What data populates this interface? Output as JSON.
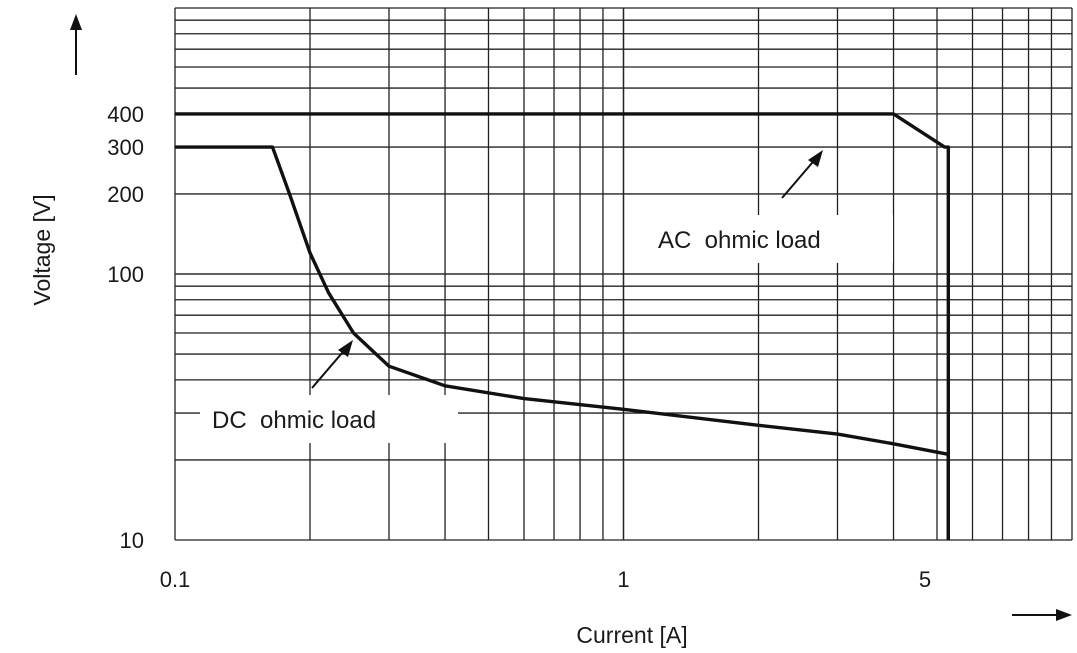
{
  "chart_data": {
    "type": "line",
    "title": "",
    "xlabel": "Current [A]",
    "ylabel": "Voltage [V]",
    "xscale": "log",
    "yscale": "log",
    "xlim": [
      0.1,
      10
    ],
    "ylim": [
      10,
      1000
    ],
    "grid": true,
    "x_ticks": [
      {
        "value": 0.1,
        "label": "0.1"
      },
      {
        "value": 1,
        "label": "1"
      },
      {
        "value": 5,
        "label": "5"
      }
    ],
    "y_ticks": [
      {
        "value": 10,
        "label": "10"
      },
      {
        "value": 100,
        "label": "100"
      },
      {
        "value": 200,
        "label": "200"
      },
      {
        "value": 300,
        "label": "300"
      },
      {
        "value": 400,
        "label": "400"
      }
    ],
    "series": [
      {
        "name": "AC ohmic load",
        "x": [
          0.1,
          4.0,
          5.2,
          5.3,
          5.3
        ],
        "y": [
          400,
          400,
          300,
          300,
          10
        ]
      },
      {
        "name": "DC ohmic load",
        "x": [
          0.1,
          0.165,
          0.18,
          0.2,
          0.22,
          0.25,
          0.3,
          0.4,
          0.6,
          1.0,
          2.0,
          3.0,
          4.0,
          5.3,
          5.3
        ],
        "y": [
          300,
          300,
          200,
          120,
          85,
          60,
          45,
          38,
          34,
          31,
          27,
          25,
          23,
          21,
          10
        ]
      }
    ],
    "annotations": [
      {
        "text": "AC  ohmic load",
        "series": "AC ohmic load"
      },
      {
        "text": "DC  ohmic load",
        "series": "DC ohmic load"
      }
    ]
  }
}
